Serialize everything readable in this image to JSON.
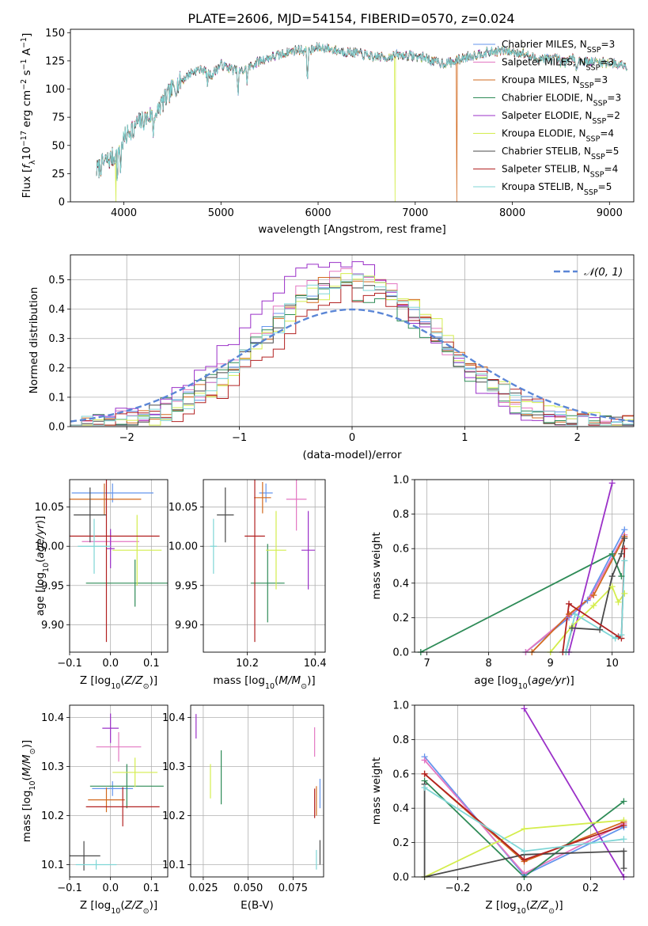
{
  "title": "PLATE=2606, MJD=54154, FIBERID=0570, z=0.024",
  "colors": {
    "series": [
      "#6495ed",
      "#e377c2",
      "#d2691e",
      "#2e8b57",
      "#9b30c8",
      "#d4ed4d",
      "#4a4a4a",
      "#b22222",
      "#7fd6d6"
    ],
    "normal_curve": "#5b86d6",
    "grid": "#b0b0b0"
  },
  "chart_data": [
    {
      "id": "spectrum",
      "type": "line",
      "title": "PLATE=2606, MJD=54154, FIBERID=0570, z=0.024",
      "xlabel": "wavelength [Angstrom, rest frame]",
      "ylabel": "Flux [f_λ10^-17 erg cm^-2 s^-1 A^-1]",
      "xlim": [
        3450,
        9250
      ],
      "ylim": [
        0,
        153
      ],
      "xticks": [
        4000,
        5000,
        6000,
        7000,
        8000,
        9000
      ],
      "yticks": [
        0,
        25,
        50,
        75,
        100,
        125,
        150
      ],
      "grid": false,
      "legend_position": "top-right",
      "legend": [
        {
          "base": "Chabrier MILES, N",
          "sub": "SSP",
          "tail": "=3"
        },
        {
          "base": "Salpeter MILES, N",
          "sub": "SSP",
          "tail": "=3"
        },
        {
          "base": "Kroupa MILES, N",
          "sub": "SSP",
          "tail": "=3"
        },
        {
          "base": "Chabrier ELODIE, N",
          "sub": "SSP",
          "tail": "=3"
        },
        {
          "base": "Salpeter ELODIE, N",
          "sub": "SSP",
          "tail": "=2"
        },
        {
          "base": "Kroupa ELODIE, N",
          "sub": "SSP",
          "tail": "=4"
        },
        {
          "base": "Chabrier STELIB, N",
          "sub": "SSP",
          "tail": "=5"
        },
        {
          "base": "Salpeter STELIB, N",
          "sub": "SSP",
          "tail": "=4"
        },
        {
          "base": "Kroupa STELIB, N",
          "sub": "SSP",
          "tail": "=5"
        }
      ],
      "continuum_x": [
        3720,
        3800,
        3900,
        4000,
        4100,
        4200,
        4300,
        4400,
        4500,
        4600,
        4700,
        4800,
        4900,
        5000,
        5100,
        5200,
        5300,
        5400,
        5500,
        5600,
        5700,
        5800,
        5900,
        6000,
        6100,
        6200,
        6300,
        6400,
        6500,
        6600,
        6700,
        6800,
        6900,
        7000,
        7100,
        7200,
        7300,
        7400,
        7500,
        7600,
        7700,
        7800,
        7900,
        8000,
        8100,
        8200,
        8300,
        8400,
        8500,
        8600,
        8700,
        8800,
        8900,
        9000,
        9100,
        9180
      ],
      "continuum_y": [
        28,
        35,
        40,
        55,
        68,
        72,
        78,
        88,
        100,
        108,
        115,
        118,
        112,
        122,
        118,
        115,
        120,
        125,
        128,
        130,
        133,
        135,
        133,
        137,
        136,
        134,
        133,
        132,
        130,
        129,
        128,
        130,
        130,
        129,
        128,
        124,
        123,
        124,
        128,
        130,
        132,
        133,
        134,
        133,
        132,
        128,
        127,
        127,
        126,
        127,
        125,
        124,
        124,
        123,
        122,
        121
      ],
      "absorption_lines": [
        {
          "x": 3934,
          "depth": 25
        },
        {
          "x": 3968,
          "depth": 22
        },
        {
          "x": 4102,
          "depth": 15
        },
        {
          "x": 4304,
          "depth": 18
        },
        {
          "x": 4340,
          "depth": 12
        },
        {
          "x": 4861,
          "depth": 10
        },
        {
          "x": 5175,
          "depth": 22
        },
        {
          "x": 5270,
          "depth": 12
        },
        {
          "x": 5890,
          "depth": 25
        },
        {
          "x": 6563,
          "depth": 8
        },
        {
          "x": 8498,
          "depth": 8
        },
        {
          "x": 8542,
          "depth": 10
        },
        {
          "x": 8662,
          "depth": 9
        }
      ],
      "model_dropouts": [
        {
          "x": 3920,
          "series": 5,
          "to": 0
        },
        {
          "x": 6790,
          "series": 5,
          "to": 0
        },
        {
          "x": 7430,
          "series": 2,
          "to": 0
        }
      ]
    },
    {
      "id": "residuals",
      "type": "histogram",
      "xlabel": "(data-model)/error",
      "ylabel": "Normed distribution",
      "xlim": [
        -2.5,
        2.5
      ],
      "ylim": [
        0,
        0.585
      ],
      "xticks": [
        -2,
        -1,
        0,
        1,
        2
      ],
      "yticks": [
        0.0,
        0.1,
        0.2,
        0.3,
        0.4,
        0.5
      ],
      "grid": true,
      "legend_position": "top-right",
      "curve_label": "𝒩(0, 1)",
      "bin_width": 0.1,
      "bin_start": -2.5
    },
    {
      "id": "age-vs-Z",
      "type": "errorbar",
      "xlabel": "Z [log₁₀(Z/Z⊙)]",
      "ylabel": "age  [log₁₀(age/yr)]",
      "xlim": [
        -0.1,
        0.14
      ],
      "ylim": [
        9.865,
        10.085
      ],
      "xticks": [
        -0.1,
        0.0,
        0.1
      ],
      "yticks": [
        9.9,
        9.95,
        10.0,
        10.05
      ],
      "grid": true,
      "points": [
        {
          "x": 0.005,
          "xerr": 0.1,
          "y": 10.068,
          "yerr": 0.012
        },
        {
          "x": 0.0,
          "xerr": 0.07,
          "y": 10.006,
          "yerr": 0.012
        },
        {
          "x": -0.015,
          "xerr": 0.09,
          "y": 10.06,
          "yerr": 0.02
        },
        {
          "x": 0.06,
          "xerr": 0.12,
          "y": 9.953,
          "yerr": 0.03
        },
        {
          "x": 0.0,
          "xerr": 0.01,
          "y": 9.997,
          "yerr": 0.025
        },
        {
          "x": 0.065,
          "xerr": 0.06,
          "y": 9.995,
          "yerr": 0.045
        },
        {
          "x": -0.05,
          "xerr": 0.04,
          "y": 10.04,
          "yerr": 0.035
        },
        {
          "x": -0.01,
          "xerr": 0.13,
          "y": 10.013,
          "yerr": 0.135
        },
        {
          "x": -0.04,
          "xerr": 0.04,
          "y": 10.0,
          "yerr": 0.035
        }
      ]
    },
    {
      "id": "age-vs-mass",
      "type": "errorbar",
      "xlabel": "mass [log₁₀(M/M⊙)]",
      "ylabel": "",
      "xlim": [
        10.07,
        10.43
      ],
      "ylim": [
        9.865,
        10.085
      ],
      "xticks": [
        10.2,
        10.4
      ],
      "yticks": [
        9.9,
        9.95,
        10.0,
        10.05
      ],
      "grid": true,
      "points": [
        {
          "x": 10.255,
          "xerr": 0.02,
          "y": 10.068,
          "yerr": 0.012
        },
        {
          "x": 10.345,
          "xerr": 0.03,
          "y": 10.06,
          "yerr": 0.04
        },
        {
          "x": 10.245,
          "xerr": 0.025,
          "y": 10.062,
          "yerr": 0.02
        },
        {
          "x": 10.26,
          "xerr": 0.05,
          "y": 9.953,
          "yerr": 0.05
        },
        {
          "x": 10.38,
          "xerr": 0.02,
          "y": 9.995,
          "yerr": 0.05
        },
        {
          "x": 10.285,
          "xerr": 0.03,
          "y": 9.995,
          "yerr": 0.05
        },
        {
          "x": 10.135,
          "xerr": 0.025,
          "y": 10.04,
          "yerr": 0.035
        },
        {
          "x": 10.222,
          "xerr": 0.03,
          "y": 10.013,
          "yerr": 0.135
        },
        {
          "x": 10.1,
          "xerr": 0.01,
          "y": 10.0,
          "yerr": 0.035
        }
      ]
    },
    {
      "id": "sfh-age",
      "type": "line",
      "xlabel": "age  [log₁₀(age/yr)]",
      "ylabel": "mass weight",
      "xlim": [
        6.8,
        10.35
      ],
      "ylim": [
        0,
        1.0
      ],
      "xticks": [
        7,
        8,
        9,
        10
      ],
      "yticks": [
        0.0,
        0.2,
        0.4,
        0.6,
        0.8,
        1.0
      ],
      "grid": true,
      "series": [
        {
          "x": [
            8.6,
            9.3,
            9.6,
            10.2
          ],
          "y": [
            0.0,
            0.2,
            0.3,
            0.71
          ]
        },
        {
          "x": [
            8.6,
            9.3,
            9.65,
            10.2
          ],
          "y": [
            0.0,
            0.21,
            0.32,
            0.68
          ]
        },
        {
          "x": [
            8.7,
            9.3,
            9.7,
            10.2
          ],
          "y": [
            0.0,
            0.22,
            0.33,
            0.67
          ]
        },
        {
          "x": [
            6.9,
            10.0,
            10.15
          ],
          "y": [
            0.0,
            0.57,
            0.44
          ]
        },
        {
          "x": [
            9.3,
            10.0
          ],
          "y": [
            0.0,
            0.98
          ]
        },
        {
          "x": [
            9.0,
            9.35,
            9.7,
            10.0,
            10.1,
            10.2
          ],
          "y": [
            0.0,
            0.15,
            0.27,
            0.38,
            0.29,
            0.34
          ]
        },
        {
          "x": [
            9.25,
            9.35,
            9.8,
            10.0,
            10.15,
            10.2
          ],
          "y": [
            0.0,
            0.14,
            0.13,
            0.44,
            0.57,
            0.66
          ]
        },
        {
          "x": [
            9.2,
            9.3,
            10.1,
            10.15,
            10.2
          ],
          "y": [
            0.0,
            0.28,
            0.09,
            0.08,
            0.6
          ]
        },
        {
          "x": [
            9.25,
            9.4,
            10.05,
            10.15,
            10.2
          ],
          "y": [
            0.0,
            0.22,
            0.08,
            0.1,
            0.53
          ]
        }
      ]
    },
    {
      "id": "mass-vs-Z",
      "type": "errorbar",
      "xlabel": "Z [log₁₀(Z/Z⊙)]",
      "ylabel": "mass [log₁₀(M/M⊙)]",
      "xlim": [
        -0.1,
        0.14
      ],
      "ylim": [
        10.075,
        10.425
      ],
      "xticks": [
        -0.1,
        0.0,
        0.1
      ],
      "yticks": [
        10.1,
        10.2,
        10.3,
        10.4
      ],
      "grid": true,
      "points": [
        {
          "x": 0.005,
          "xerr": 0.05,
          "y": 10.255,
          "yerr": 0.015
        },
        {
          "x": 0.02,
          "xerr": 0.055,
          "y": 10.34,
          "yerr": 0.03
        },
        {
          "x": -0.01,
          "xerr": 0.045,
          "y": 10.232,
          "yerr": 0.025
        },
        {
          "x": 0.04,
          "xerr": 0.09,
          "y": 10.26,
          "yerr": 0.045
        },
        {
          "x": 0.0,
          "xerr": 0.02,
          "y": 10.378,
          "yerr": 0.03
        },
        {
          "x": 0.06,
          "xerr": 0.055,
          "y": 10.288,
          "yerr": 0.03
        },
        {
          "x": -0.065,
          "xerr": 0.04,
          "y": 10.118,
          "yerr": 0.03
        },
        {
          "x": 0.03,
          "xerr": 0.09,
          "y": 10.218,
          "yerr": 0.04
        },
        {
          "x": -0.035,
          "xerr": 0.05,
          "y": 10.1,
          "yerr": 0.01
        }
      ]
    },
    {
      "id": "mass-vs-EBV",
      "type": "errorbar",
      "xlabel": "E(B-V)",
      "ylabel": "",
      "xlim": [
        0.018,
        0.092
      ],
      "ylim": [
        10.075,
        10.425
      ],
      "xticks": [
        0.025,
        0.05,
        0.075
      ],
      "xtick_labels": [
        "0.025",
        "0.050",
        "0.075"
      ],
      "yticks": [
        10.1,
        10.2,
        10.3,
        10.4
      ],
      "grid": true,
      "points": [
        {
          "x": 0.09,
          "xerr": 0.0,
          "y": 10.245,
          "yerr": 0.03
        },
        {
          "x": 0.087,
          "xerr": 0.0,
          "y": 10.35,
          "yerr": 0.03
        },
        {
          "x": 0.088,
          "xerr": 0.0,
          "y": 10.23,
          "yerr": 0.03
        },
        {
          "x": 0.035,
          "xerr": 0.0,
          "y": 10.278,
          "yerr": 0.055
        },
        {
          "x": 0.021,
          "xerr": 0.0,
          "y": 10.382,
          "yerr": 0.025
        },
        {
          "x": 0.029,
          "xerr": 0.0,
          "y": 10.27,
          "yerr": 0.035
        },
        {
          "x": 0.09,
          "xerr": 0.0,
          "y": 10.125,
          "yerr": 0.025
        },
        {
          "x": 0.087,
          "xerr": 0.0,
          "y": 10.225,
          "yerr": 0.03
        },
        {
          "x": 0.088,
          "xerr": 0.0,
          "y": 10.11,
          "yerr": 0.02
        }
      ]
    },
    {
      "id": "sfh-Z",
      "type": "line",
      "xlabel": "Z [log₁₀(Z/Z⊙)]",
      "ylabel": "mass weight",
      "xlim": [
        -0.33,
        0.33
      ],
      "ylim": [
        0,
        1.0
      ],
      "xticks": [
        -0.2,
        0.0,
        0.2
      ],
      "yticks": [
        0.0,
        0.2,
        0.4,
        0.6,
        0.8,
        1.0
      ],
      "grid": true,
      "series": [
        {
          "x": [
            -0.3,
            0.0,
            0.3
          ],
          "y": [
            0.7,
            0.01,
            0.29
          ]
        },
        {
          "x": [
            -0.3,
            0.0,
            0.3
          ],
          "y": [
            0.68,
            0.02,
            0.31
          ]
        },
        {
          "x": [
            -0.3,
            0.0,
            0.3
          ],
          "y": [
            0.6,
            0.09,
            0.32
          ]
        },
        {
          "x": [
            -0.3,
            0.0,
            0.3
          ],
          "y": [
            0.56,
            0.0,
            0.44
          ]
        },
        {
          "x": [
            0.0,
            0.3
          ],
          "y": [
            0.98,
            0.0
          ]
        },
        {
          "x": [
            -0.3,
            0.0,
            0.3
          ],
          "y": [
            0.0,
            0.28,
            0.33
          ]
        },
        {
          "x": [
            -0.3,
            -0.3,
            0.0,
            0.3,
            0.3
          ],
          "y": [
            0.54,
            0.0,
            0.13,
            0.15,
            0.05
          ]
        },
        {
          "x": [
            -0.3,
            0.0,
            0.3
          ],
          "y": [
            0.6,
            0.1,
            0.3
          ]
        },
        {
          "x": [
            -0.3,
            0.0,
            0.3
          ],
          "y": [
            0.52,
            0.15,
            0.22
          ]
        }
      ]
    }
  ]
}
